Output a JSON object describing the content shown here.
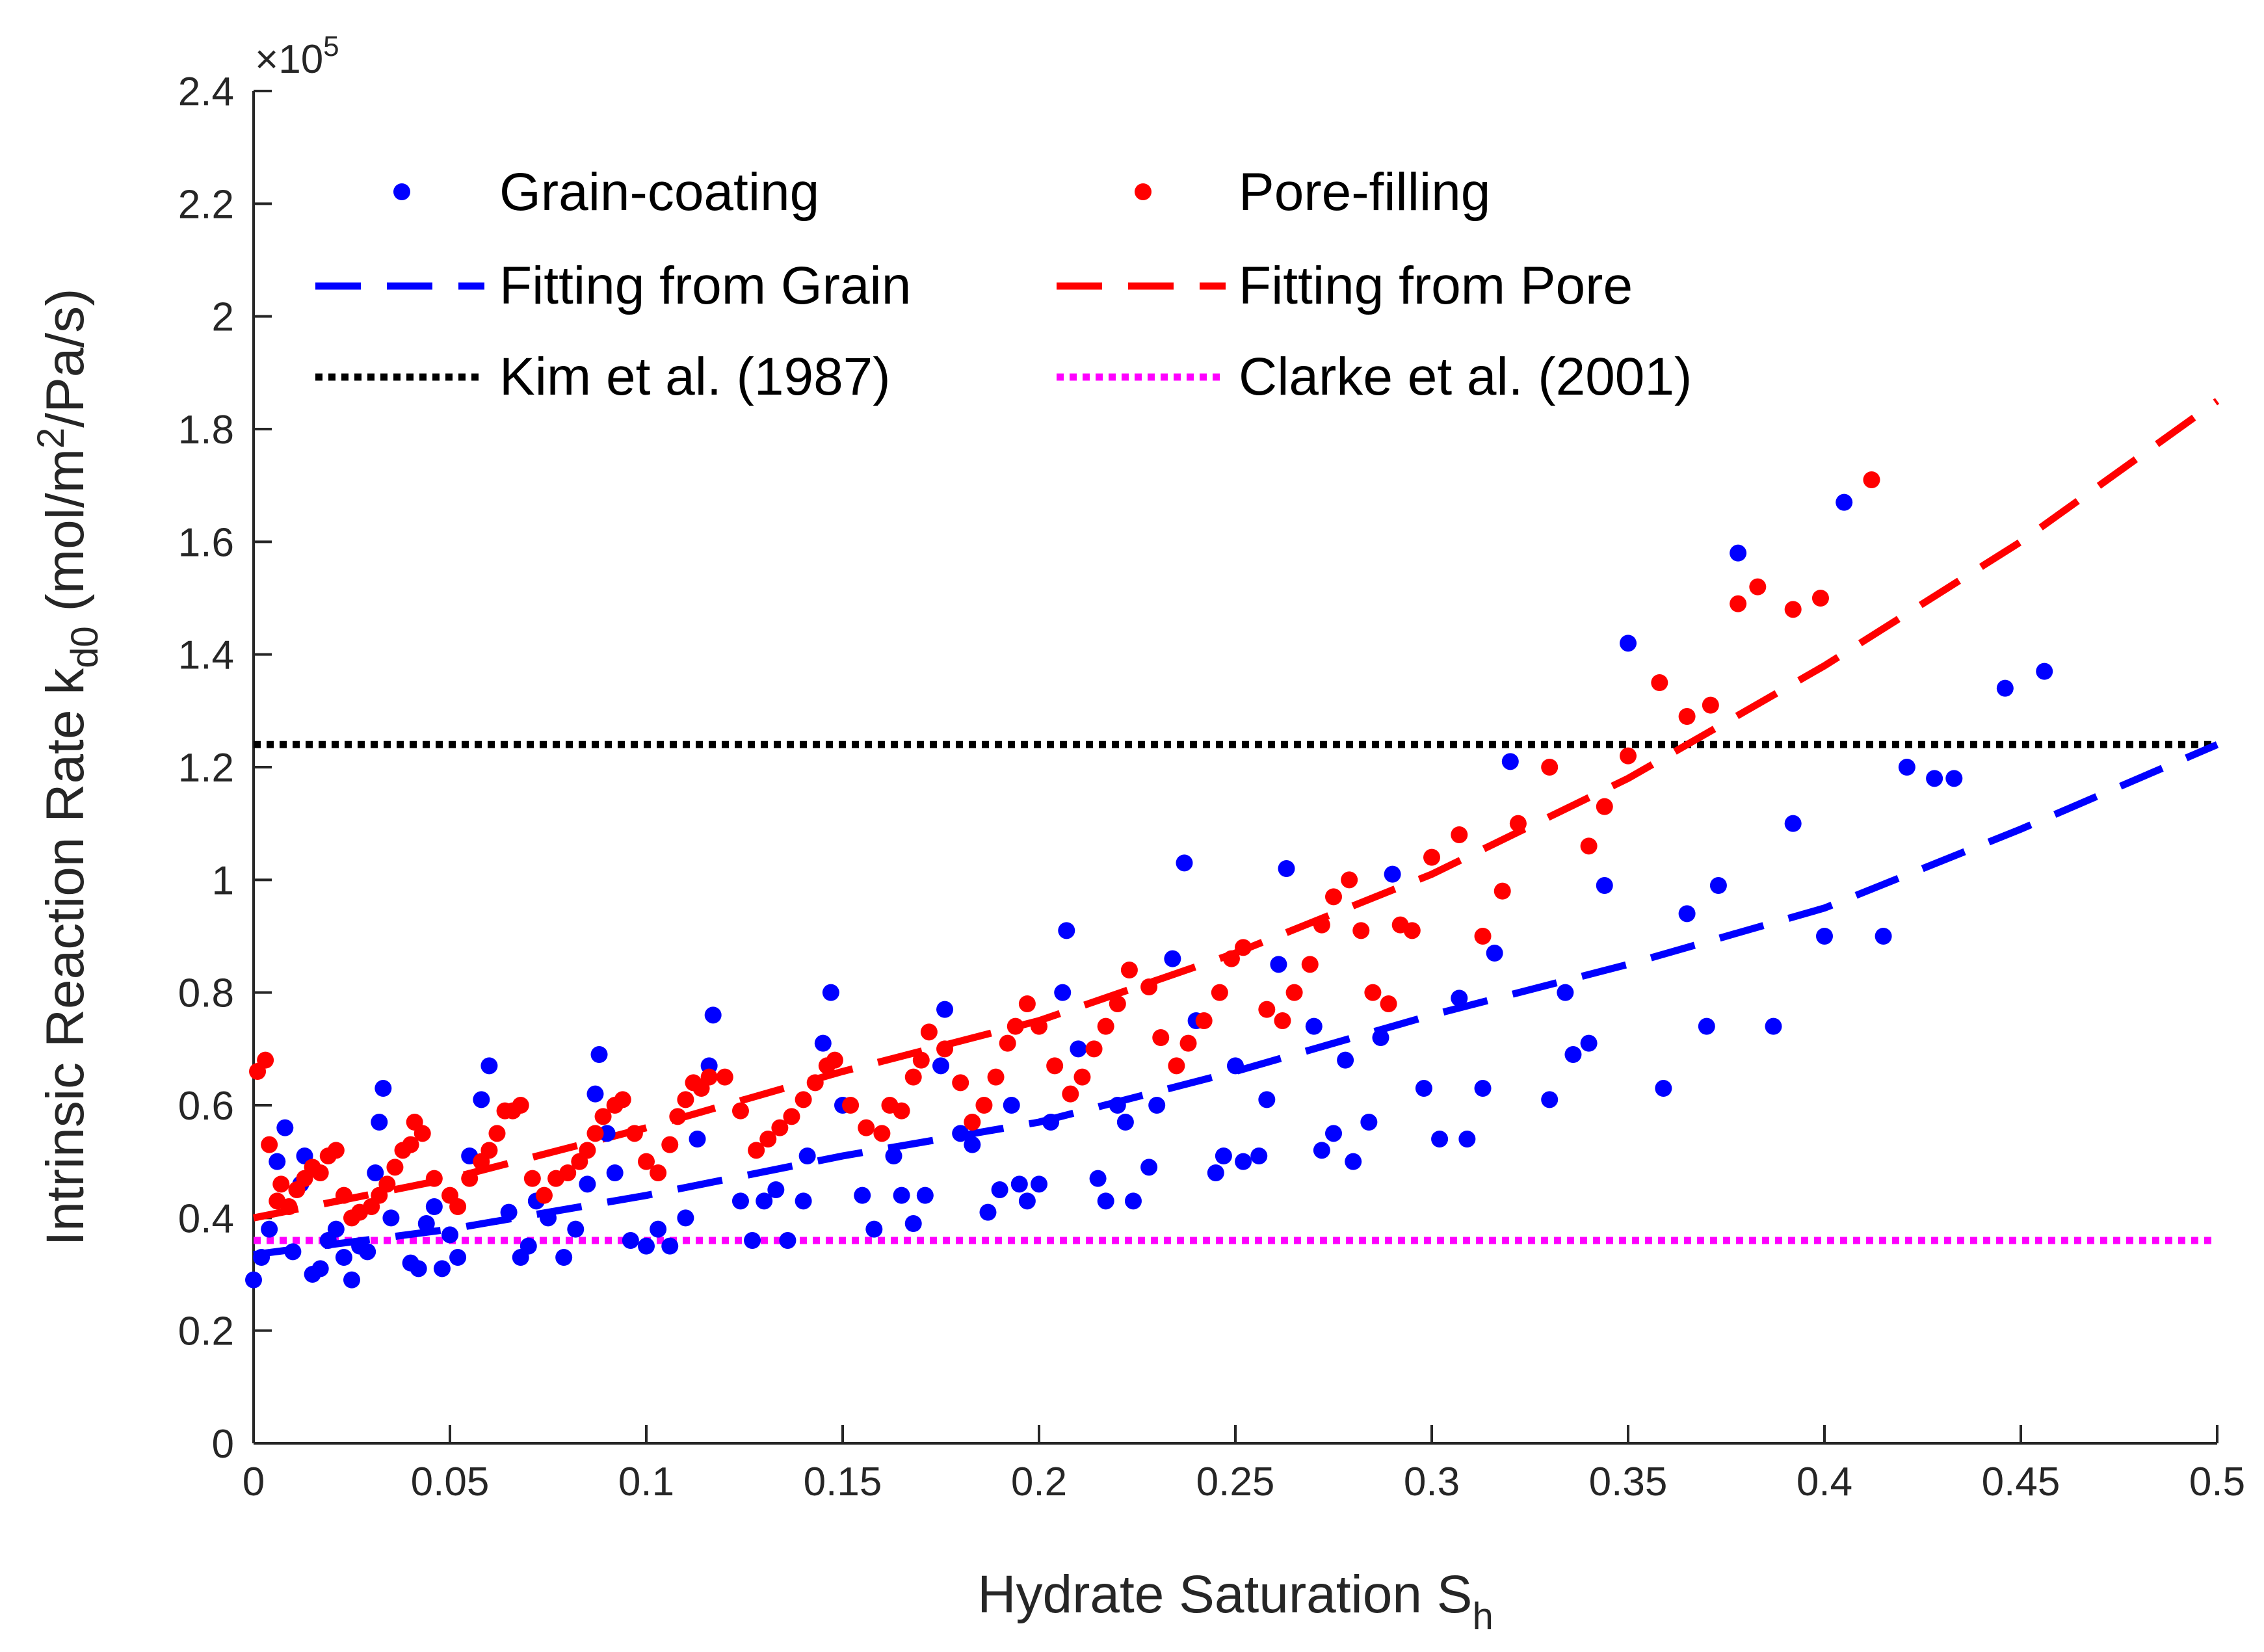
{
  "chart_data": {
    "type": "scatter",
    "xlabel": "Hydrate Saturation S",
    "xlabel_sub": "h",
    "ylabel_main": "Intrinsic Reaction Rate k",
    "ylabel_sub": "d0",
    "ylabel_unit": " (mol/m",
    "ylabel_sup": "2",
    "ylabel_unit_end": "/Pa/s)",
    "y_exponent_prefix": "×10",
    "y_exponent_power": "5",
    "xlim": [
      0,
      0.5
    ],
    "ylim": [
      0,
      2.4
    ],
    "x_ticks": [
      "0",
      "0.05",
      "0.1",
      "0.15",
      "0.2",
      "0.25",
      "0.3",
      "0.35",
      "0.4",
      "0.45",
      "0.5"
    ],
    "y_ticks": [
      "0",
      "0.2",
      "0.4",
      "0.6",
      "0.8",
      "1",
      "1.2",
      "1.4",
      "1.6",
      "1.8",
      "2",
      "2.2",
      "2.4"
    ],
    "grid": false,
    "legend_position": "top-left",
    "series": [
      {
        "name": "Grain-coating",
        "kind": "markers",
        "color": "#0000ff",
        "points": [
          [
            0.0,
            0.29
          ],
          [
            0.002,
            0.33
          ],
          [
            0.004,
            0.38
          ],
          [
            0.006,
            0.5
          ],
          [
            0.008,
            0.56
          ],
          [
            0.01,
            0.34
          ],
          [
            0.012,
            0.46
          ],
          [
            0.013,
            0.51
          ],
          [
            0.015,
            0.3
          ],
          [
            0.017,
            0.31
          ],
          [
            0.019,
            0.36
          ],
          [
            0.021,
            0.38
          ],
          [
            0.023,
            0.33
          ],
          [
            0.025,
            0.29
          ],
          [
            0.027,
            0.35
          ],
          [
            0.029,
            0.34
          ],
          [
            0.031,
            0.48
          ],
          [
            0.032,
            0.57
          ],
          [
            0.033,
            0.63
          ],
          [
            0.035,
            0.4
          ],
          [
            0.04,
            0.32
          ],
          [
            0.042,
            0.31
          ],
          [
            0.044,
            0.39
          ],
          [
            0.046,
            0.42
          ],
          [
            0.048,
            0.31
          ],
          [
            0.05,
            0.37
          ],
          [
            0.052,
            0.33
          ],
          [
            0.055,
            0.51
          ],
          [
            0.058,
            0.61
          ],
          [
            0.06,
            0.67
          ],
          [
            0.065,
            0.41
          ],
          [
            0.068,
            0.33
          ],
          [
            0.07,
            0.35
          ],
          [
            0.072,
            0.43
          ],
          [
            0.075,
            0.4
          ],
          [
            0.079,
            0.33
          ],
          [
            0.082,
            0.38
          ],
          [
            0.085,
            0.46
          ],
          [
            0.087,
            0.62
          ],
          [
            0.088,
            0.69
          ],
          [
            0.09,
            0.55
          ],
          [
            0.092,
            0.48
          ],
          [
            0.096,
            0.36
          ],
          [
            0.1,
            0.35
          ],
          [
            0.103,
            0.38
          ],
          [
            0.106,
            0.35
          ],
          [
            0.11,
            0.4
          ],
          [
            0.113,
            0.54
          ],
          [
            0.116,
            0.67
          ],
          [
            0.117,
            0.76
          ],
          [
            0.124,
            0.43
          ],
          [
            0.127,
            0.36
          ],
          [
            0.13,
            0.43
          ],
          [
            0.133,
            0.45
          ],
          [
            0.136,
            0.36
          ],
          [
            0.14,
            0.43
          ],
          [
            0.141,
            0.51
          ],
          [
            0.145,
            0.71
          ],
          [
            0.147,
            0.8
          ],
          [
            0.15,
            0.6
          ],
          [
            0.155,
            0.44
          ],
          [
            0.158,
            0.38
          ],
          [
            0.163,
            0.51
          ],
          [
            0.165,
            0.44
          ],
          [
            0.168,
            0.39
          ],
          [
            0.171,
            0.44
          ],
          [
            0.175,
            0.67
          ],
          [
            0.176,
            0.77
          ],
          [
            0.18,
            0.55
          ],
          [
            0.183,
            0.53
          ],
          [
            0.187,
            0.41
          ],
          [
            0.19,
            0.45
          ],
          [
            0.193,
            0.6
          ],
          [
            0.195,
            0.46
          ],
          [
            0.197,
            0.43
          ],
          [
            0.2,
            0.46
          ],
          [
            0.203,
            0.57
          ],
          [
            0.206,
            0.8
          ],
          [
            0.207,
            0.91
          ],
          [
            0.21,
            0.7
          ],
          [
            0.215,
            0.47
          ],
          [
            0.217,
            0.43
          ],
          [
            0.22,
            0.6
          ],
          [
            0.222,
            0.57
          ],
          [
            0.224,
            0.43
          ],
          [
            0.228,
            0.49
          ],
          [
            0.23,
            0.6
          ],
          [
            0.234,
            0.86
          ],
          [
            0.237,
            1.03
          ],
          [
            0.24,
            0.75
          ],
          [
            0.245,
            0.48
          ],
          [
            0.247,
            0.51
          ],
          [
            0.25,
            0.67
          ],
          [
            0.252,
            0.5
          ],
          [
            0.256,
            0.51
          ],
          [
            0.258,
            0.61
          ],
          [
            0.261,
            0.85
          ],
          [
            0.263,
            1.02
          ],
          [
            0.27,
            0.74
          ],
          [
            0.272,
            0.52
          ],
          [
            0.275,
            0.55
          ],
          [
            0.278,
            0.68
          ],
          [
            0.28,
            0.5
          ],
          [
            0.284,
            0.57
          ],
          [
            0.287,
            0.72
          ],
          [
            0.29,
            1.01
          ],
          [
            0.298,
            0.63
          ],
          [
            0.302,
            0.54
          ],
          [
            0.307,
            0.79
          ],
          [
            0.309,
            0.54
          ],
          [
            0.313,
            0.63
          ],
          [
            0.316,
            0.87
          ],
          [
            0.32,
            1.21
          ],
          [
            0.33,
            0.61
          ],
          [
            0.334,
            0.8
          ],
          [
            0.336,
            0.69
          ],
          [
            0.34,
            0.71
          ],
          [
            0.344,
            0.99
          ],
          [
            0.35,
            1.42
          ],
          [
            0.359,
            0.63
          ],
          [
            0.365,
            0.94
          ],
          [
            0.37,
            0.74
          ],
          [
            0.373,
            0.99
          ],
          [
            0.378,
            1.58
          ],
          [
            0.387,
            0.74
          ],
          [
            0.392,
            1.1
          ],
          [
            0.4,
            0.9
          ],
          [
            0.405,
            1.67
          ],
          [
            0.415,
            0.9
          ],
          [
            0.421,
            1.2
          ],
          [
            0.428,
            1.18
          ],
          [
            0.433,
            1.18
          ],
          [
            0.446,
            1.34
          ],
          [
            0.456,
            1.37
          ]
        ]
      },
      {
        "name": "Pore-filling",
        "kind": "markers",
        "color": "#ff0000",
        "points": [
          [
            0.001,
            0.66
          ],
          [
            0.003,
            0.68
          ],
          [
            0.004,
            0.53
          ],
          [
            0.006,
            0.43
          ],
          [
            0.007,
            0.46
          ],
          [
            0.009,
            0.42
          ],
          [
            0.011,
            0.45
          ],
          [
            0.013,
            0.47
          ],
          [
            0.015,
            0.49
          ],
          [
            0.017,
            0.48
          ],
          [
            0.019,
            0.51
          ],
          [
            0.021,
            0.52
          ],
          [
            0.023,
            0.44
          ],
          [
            0.025,
            0.4
          ],
          [
            0.027,
            0.41
          ],
          [
            0.03,
            0.42
          ],
          [
            0.032,
            0.44
          ],
          [
            0.034,
            0.46
          ],
          [
            0.036,
            0.49
          ],
          [
            0.038,
            0.52
          ],
          [
            0.04,
            0.53
          ],
          [
            0.041,
            0.57
          ],
          [
            0.043,
            0.55
          ],
          [
            0.046,
            0.47
          ],
          [
            0.05,
            0.44
          ],
          [
            0.052,
            0.42
          ],
          [
            0.055,
            0.47
          ],
          [
            0.058,
            0.5
          ],
          [
            0.06,
            0.52
          ],
          [
            0.062,
            0.55
          ],
          [
            0.064,
            0.59
          ],
          [
            0.066,
            0.59
          ],
          [
            0.068,
            0.6
          ],
          [
            0.071,
            0.47
          ],
          [
            0.074,
            0.44
          ],
          [
            0.077,
            0.47
          ],
          [
            0.08,
            0.48
          ],
          [
            0.083,
            0.5
          ],
          [
            0.085,
            0.52
          ],
          [
            0.087,
            0.55
          ],
          [
            0.089,
            0.58
          ],
          [
            0.092,
            0.6
          ],
          [
            0.094,
            0.61
          ],
          [
            0.097,
            0.55
          ],
          [
            0.1,
            0.5
          ],
          [
            0.103,
            0.48
          ],
          [
            0.106,
            0.53
          ],
          [
            0.108,
            0.58
          ],
          [
            0.11,
            0.61
          ],
          [
            0.112,
            0.64
          ],
          [
            0.114,
            0.63
          ],
          [
            0.116,
            0.65
          ],
          [
            0.12,
            0.65
          ],
          [
            0.124,
            0.59
          ],
          [
            0.128,
            0.52
          ],
          [
            0.131,
            0.54
          ],
          [
            0.134,
            0.56
          ],
          [
            0.137,
            0.58
          ],
          [
            0.14,
            0.61
          ],
          [
            0.143,
            0.64
          ],
          [
            0.146,
            0.67
          ],
          [
            0.148,
            0.68
          ],
          [
            0.152,
            0.6
          ],
          [
            0.156,
            0.56
          ],
          [
            0.16,
            0.55
          ],
          [
            0.162,
            0.6
          ],
          [
            0.165,
            0.59
          ],
          [
            0.168,
            0.65
          ],
          [
            0.17,
            0.68
          ],
          [
            0.172,
            0.73
          ],
          [
            0.176,
            0.7
          ],
          [
            0.18,
            0.64
          ],
          [
            0.183,
            0.57
          ],
          [
            0.186,
            0.6
          ],
          [
            0.189,
            0.65
          ],
          [
            0.192,
            0.71
          ],
          [
            0.194,
            0.74
          ],
          [
            0.197,
            0.78
          ],
          [
            0.2,
            0.74
          ],
          [
            0.204,
            0.67
          ],
          [
            0.208,
            0.62
          ],
          [
            0.211,
            0.65
          ],
          [
            0.214,
            0.7
          ],
          [
            0.217,
            0.74
          ],
          [
            0.22,
            0.78
          ],
          [
            0.223,
            0.84
          ],
          [
            0.228,
            0.81
          ],
          [
            0.231,
            0.72
          ],
          [
            0.235,
            0.67
          ],
          [
            0.238,
            0.71
          ],
          [
            0.242,
            0.75
          ],
          [
            0.246,
            0.8
          ],
          [
            0.249,
            0.86
          ],
          [
            0.252,
            0.88
          ],
          [
            0.258,
            0.77
          ],
          [
            0.262,
            0.75
          ],
          [
            0.265,
            0.8
          ],
          [
            0.269,
            0.85
          ],
          [
            0.272,
            0.92
          ],
          [
            0.275,
            0.97
          ],
          [
            0.279,
            1.0
          ],
          [
            0.282,
            0.91
          ],
          [
            0.285,
            0.8
          ],
          [
            0.289,
            0.78
          ],
          [
            0.292,
            0.92
          ],
          [
            0.295,
            0.91
          ],
          [
            0.3,
            1.04
          ],
          [
            0.307,
            1.08
          ],
          [
            0.313,
            0.9
          ],
          [
            0.318,
            0.98
          ],
          [
            0.322,
            1.1
          ],
          [
            0.33,
            1.2
          ],
          [
            0.34,
            1.06
          ],
          [
            0.344,
            1.13
          ],
          [
            0.35,
            1.22
          ],
          [
            0.358,
            1.35
          ],
          [
            0.365,
            1.29
          ],
          [
            0.371,
            1.31
          ],
          [
            0.378,
            1.49
          ],
          [
            0.383,
            1.52
          ],
          [
            0.392,
            1.48
          ],
          [
            0.399,
            1.5
          ],
          [
            0.412,
            1.71
          ]
        ]
      },
      {
        "name": "Fitting from Grain",
        "kind": "dashed",
        "color": "#0000ff",
        "points": [
          [
            0.0,
            0.335
          ],
          [
            0.05,
            0.38
          ],
          [
            0.1,
            0.44
          ],
          [
            0.15,
            0.51
          ],
          [
            0.2,
            0.57
          ],
          [
            0.25,
            0.66
          ],
          [
            0.3,
            0.76
          ],
          [
            0.35,
            0.85
          ],
          [
            0.4,
            0.95
          ],
          [
            0.45,
            1.09
          ],
          [
            0.5,
            1.24
          ]
        ]
      },
      {
        "name": "Fitting from Pore",
        "kind": "dashed",
        "color": "#ff0000",
        "points": [
          [
            0.0,
            0.4
          ],
          [
            0.05,
            0.47
          ],
          [
            0.1,
            0.56
          ],
          [
            0.15,
            0.66
          ],
          [
            0.2,
            0.75
          ],
          [
            0.25,
            0.87
          ],
          [
            0.3,
            1.01
          ],
          [
            0.35,
            1.18
          ],
          [
            0.4,
            1.38
          ],
          [
            0.45,
            1.6
          ],
          [
            0.5,
            1.85
          ]
        ]
      },
      {
        "name": "Kim et al. (1987)",
        "kind": "dotted",
        "color": "#000000",
        "points": [
          [
            0.0,
            1.24
          ],
          [
            0.5,
            1.24
          ]
        ]
      },
      {
        "name": "Clarke et al. (2001)",
        "kind": "dotted",
        "color": "#ff00ff",
        "points": [
          [
            0.0,
            0.36
          ],
          [
            0.5,
            0.36
          ]
        ]
      }
    ]
  }
}
